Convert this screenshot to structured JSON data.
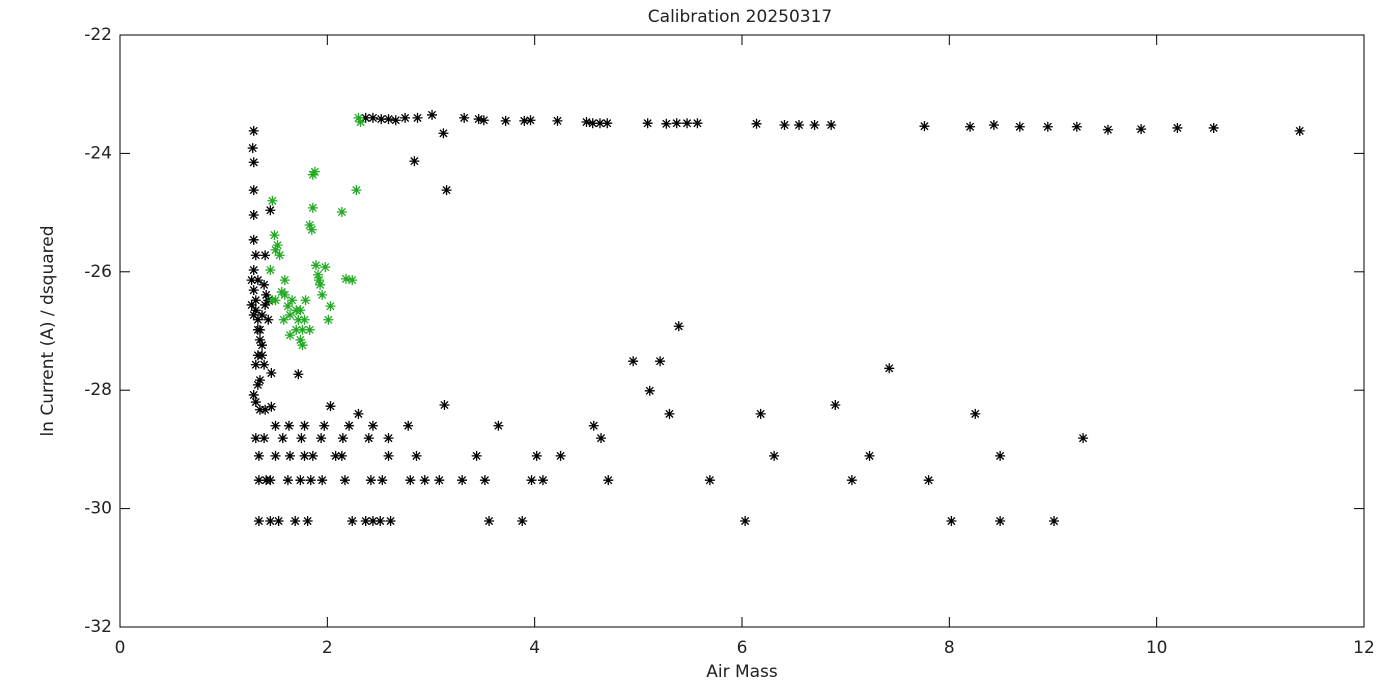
{
  "chart_data": {
    "type": "scatter",
    "title": "Calibration 20250317",
    "x_label": "Air Mass",
    "y_label": "ln Current (A) / dsquared",
    "xlim": [
      0,
      12
    ],
    "ylim": [
      -32,
      -22
    ],
    "xticks": [
      0,
      2,
      4,
      6,
      8,
      10,
      12
    ],
    "yticks": [
      -32,
      -30,
      -28,
      -26,
      -24,
      -22
    ],
    "marker": "asterisk",
    "series": [
      {
        "color": "#000000",
        "x": [
          2.37,
          2.44,
          2.52,
          2.59,
          2.66,
          2.75,
          2.87,
          3.01,
          3.12,
          3.32,
          3.46,
          3.51,
          3.72,
          3.9,
          3.96,
          4.22,
          4.5,
          4.56,
          4.63,
          4.7,
          5.09,
          5.27,
          5.37,
          5.47,
          5.57,
          6.14,
          6.41,
          6.55,
          6.7,
          6.86,
          7.76,
          8.2,
          8.43,
          8.68,
          8.95,
          9.23,
          9.53,
          9.85,
          10.2,
          10.55,
          11.38,
          1.29,
          1.28,
          1.29,
          1.29,
          1.29,
          1.29,
          1.29,
          1.31,
          1.33,
          1.33,
          1.35,
          1.31,
          1.45,
          1.4,
          1.43,
          1.46,
          1.35,
          1.46,
          1.72,
          1.27,
          1.29,
          1.31,
          1.33,
          1.35,
          1.37,
          1.31,
          1.33,
          1.29,
          1.39,
          1.41,
          1.37,
          1.4,
          1.27,
          1.29,
          1.35,
          1.39,
          1.43,
          1.31,
          1.33,
          1.37,
          2.84,
          3.15,
          5.39,
          4.95,
          5.21,
          5.11,
          7.42,
          6.9,
          3.13,
          2.3,
          5.3,
          6.18,
          8.25,
          9.29,
          8.49,
          6.31,
          7.23,
          4.64,
          4.57,
          3.65,
          2.78,
          2.44,
          2.21,
          1.97,
          1.78,
          1.63,
          1.5,
          1.39,
          1.57,
          1.75,
          1.94,
          2.14,
          1.78,
          1.5,
          1.34,
          1.64,
          1.86,
          2.08,
          2.59,
          2.86,
          3.44,
          4.02,
          4.25,
          2.59,
          2.4,
          2.15,
          1.34,
          1.45,
          1.62,
          1.74,
          1.84,
          1.95,
          2.17,
          2.42,
          2.53,
          2.8,
          2.94,
          3.08,
          3.3,
          3.52,
          3.97,
          4.08,
          4.71,
          5.69,
          7.06,
          7.8,
          1.34,
          1.45,
          1.53,
          1.69,
          1.81,
          2.24,
          2.37,
          2.44,
          2.51,
          2.61,
          6.03,
          8.02,
          8.49,
          9.01,
          3.56,
          3.88,
          1.31,
          1.41,
          2.03,
          1.4
        ],
        "values": [
          -23.4,
          -23.4,
          -23.42,
          -23.42,
          -23.44,
          -23.4,
          -23.4,
          -23.35,
          -23.66,
          -23.4,
          -23.42,
          -23.44,
          -23.45,
          -23.45,
          -23.44,
          -23.45,
          -23.47,
          -23.49,
          -23.49,
          -23.49,
          -23.49,
          -23.5,
          -23.49,
          -23.49,
          -23.49,
          -23.5,
          -23.52,
          -23.52,
          -23.52,
          -23.52,
          -23.54,
          -23.55,
          -23.52,
          -23.55,
          -23.55,
          -23.55,
          -23.6,
          -23.59,
          -23.57,
          -23.57,
          -23.62,
          -23.62,
          -23.91,
          -24.15,
          -24.62,
          -25.04,
          -25.46,
          -25.97,
          -26.48,
          -26.98,
          -27.41,
          -27.83,
          -28.2,
          -24.96,
          -25.72,
          -26.48,
          -27.71,
          -28.33,
          -28.28,
          -27.73,
          -26.14,
          -26.31,
          -26.65,
          -26.81,
          -27.15,
          -27.24,
          -27.57,
          -27.91,
          -28.08,
          -26.22,
          -26.39,
          -26.73,
          -26.56,
          -26.56,
          -26.73,
          -26.98,
          -27.57,
          -26.81,
          -25.72,
          -26.14,
          -27.41,
          -24.13,
          -24.62,
          -26.92,
          -27.51,
          -27.51,
          -28.01,
          -27.63,
          -28.25,
          -28.25,
          -28.4,
          -28.4,
          -28.4,
          -28.4,
          -28.81,
          -29.11,
          -29.11,
          -29.11,
          -28.81,
          -28.6,
          -28.6,
          -28.6,
          -28.6,
          -28.6,
          -28.6,
          -28.6,
          -28.6,
          -28.6,
          -28.81,
          -28.81,
          -28.81,
          -28.81,
          -29.11,
          -29.11,
          -29.11,
          -29.11,
          -29.11,
          -29.11,
          -29.11,
          -29.11,
          -29.11,
          -29.11,
          -29.11,
          -29.11,
          -28.81,
          -28.81,
          -28.81,
          -29.52,
          -29.52,
          -29.52,
          -29.52,
          -29.52,
          -29.52,
          -29.52,
          -29.52,
          -29.52,
          -29.52,
          -29.52,
          -29.52,
          -29.52,
          -29.52,
          -29.52,
          -29.52,
          -29.52,
          -29.52,
          -29.52,
          -29.52,
          -30.21,
          -30.21,
          -30.21,
          -30.21,
          -30.21,
          -30.21,
          -30.21,
          -30.21,
          -30.21,
          -30.21,
          -30.21,
          -30.21,
          -30.21,
          -30.21,
          -30.21,
          -30.21,
          -28.81,
          -29.52,
          -28.27,
          -28.33
        ]
      },
      {
        "color": "#22aa22",
        "x": [
          2.3,
          2.32,
          2.28,
          2.14,
          2.24,
          2.18,
          1.98,
          2.03,
          2.01,
          1.95,
          1.89,
          1.85,
          1.83,
          1.86,
          1.86,
          1.88,
          1.92,
          1.93,
          1.83,
          1.79,
          1.76,
          1.74,
          1.72,
          1.7,
          1.66,
          1.64,
          1.62,
          1.59,
          1.56,
          1.54,
          1.52,
          1.5,
          1.49,
          1.47,
          1.45,
          1.47,
          1.58,
          1.64,
          1.7,
          1.76,
          1.59,
          1.5,
          1.74,
          1.78,
          1.91
        ],
        "values": [
          -23.4,
          -23.47,
          -24.62,
          -24.99,
          -26.14,
          -26.12,
          -25.92,
          -26.58,
          -26.81,
          -26.39,
          -25.89,
          -25.29,
          -25.21,
          -24.92,
          -24.36,
          -24.31,
          -26.14,
          -26.22,
          -26.98,
          -26.48,
          -26.98,
          -27.15,
          -26.81,
          -26.65,
          -26.48,
          -26.73,
          -26.58,
          -26.14,
          -26.34,
          -25.72,
          -25.55,
          -25.63,
          -25.38,
          -24.8,
          -25.97,
          -26.48,
          -26.81,
          -27.07,
          -26.98,
          -27.24,
          -26.39,
          -26.48,
          -26.65,
          -26.81,
          -26.05
        ]
      }
    ]
  }
}
